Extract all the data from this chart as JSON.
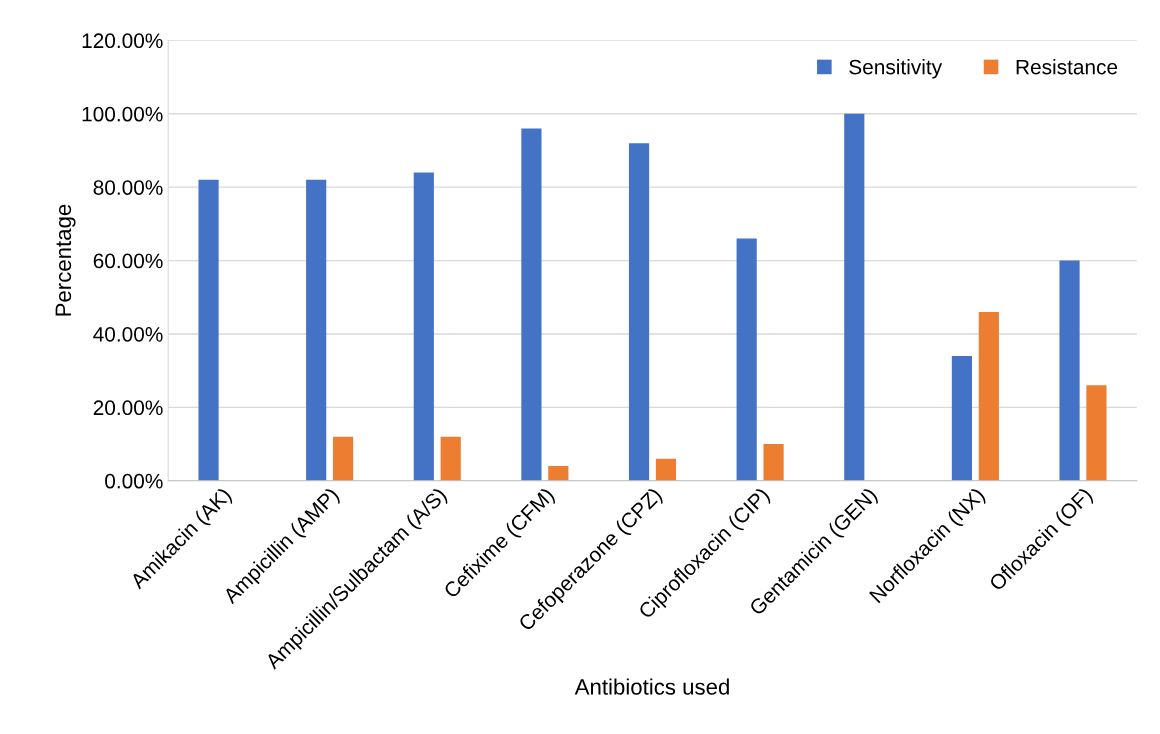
{
  "chart_data": {
    "type": "bar",
    "xlabel": "Antibiotics used",
    "ylabel": "Percentage",
    "categories": [
      "Amikacin (AK)",
      "Ampicillin (AMP)",
      "Ampicillin/Sulbactam (A/S)",
      "Cefixime (CFM)",
      "Cefoperazone (CPZ)",
      "Ciprofloxacin (CIP)",
      "Gentamicin (GEN)",
      "Norfloxacin (NX)",
      "Ofloxacin (OF)"
    ],
    "series": [
      {
        "name": "Sensitivity",
        "color": "#4472c4",
        "values": [
          82,
          82,
          84,
          96,
          92,
          66,
          100,
          34,
          60
        ]
      },
      {
        "name": "Resistance",
        "color": "#ed7d31",
        "values": [
          0,
          12,
          12,
          4,
          6,
          10,
          0,
          46,
          26
        ]
      }
    ],
    "ylim": [
      0,
      120
    ],
    "yticks": [
      {
        "value": 0,
        "label": "0.00%"
      },
      {
        "value": 20,
        "label": "20.00%"
      },
      {
        "value": 40,
        "label": "40.00%"
      },
      {
        "value": 60,
        "label": "60.00%"
      },
      {
        "value": 80,
        "label": "80.00%"
      },
      {
        "value": 100,
        "label": "100.00%"
      },
      {
        "value": 120,
        "label": "120.00%"
      }
    ],
    "grid": "y",
    "legend": "top right"
  }
}
